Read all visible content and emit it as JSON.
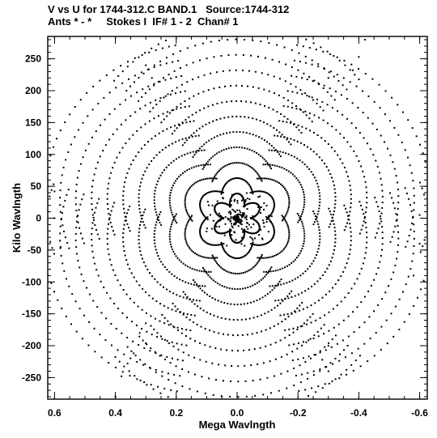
{
  "header": {
    "line1": "V vs U for 1744-312.C BAND.1   Source:1744-312",
    "line2": "Ants * - *     Stokes I  IF# 1 - 2  Chan# 1"
  },
  "chart_data": {
    "type": "scatter",
    "title": "V vs U for 1744-312.C BAND.1   Source:1744-312",
    "subtitle": "Ants * - *     Stokes I  IF# 1 - 2  Chan# 1",
    "xlabel": "Mega Wavlngth",
    "ylabel": "Kilo Wavlngth",
    "xlim": [
      0.62,
      -0.62
    ],
    "ylim": [
      -290,
      290
    ],
    "x_ticks": [
      0.6,
      0.4,
      0.2,
      0.0,
      -0.2,
      -0.4,
      -0.6
    ],
    "x_tick_labels": [
      "0.6",
      "0.4",
      "0.2",
      "0.0",
      "-0.2",
      "-0.4",
      "-0.6"
    ],
    "y_ticks": [
      250,
      200,
      150,
      100,
      50,
      0,
      -50,
      -100,
      -150,
      -200,
      -250
    ],
    "y_tick_labels": [
      "250",
      "200",
      "150",
      "100",
      "50",
      "0",
      "-50",
      "-100",
      "-150",
      "-200",
      "-250"
    ],
    "grid": false,
    "marker_color": "#000000",
    "tracks": [
      {
        "u": 0.6,
        "v": 90,
        "len": 0.1,
        "dir": -1
      },
      {
        "u": 0.56,
        "v": 75,
        "len": 0.12,
        "dir": -1
      },
      {
        "u": 0.52,
        "v": 90,
        "len": 0.16,
        "dir": -1
      },
      {
        "u": 0.46,
        "v": 105,
        "len": 0.18,
        "dir": -1
      },
      {
        "u": 0.4,
        "v": 115,
        "len": 0.2,
        "dir": -1
      },
      {
        "u": 0.35,
        "v": 125,
        "len": 0.24,
        "dir": -1
      },
      {
        "u": 0.29,
        "v": 140,
        "len": 0.25,
        "dir": -1
      },
      {
        "u": 0.22,
        "v": 150,
        "len": 0.2,
        "dir": -1
      },
      {
        "u": 0.15,
        "v": 155,
        "len": 0.14,
        "dir": -1
      },
      {
        "u": 0.08,
        "v": 150,
        "len": 0.08,
        "dir": -1
      },
      {
        "u": 0.54,
        "v": 50,
        "len": 0.1,
        "dir": -1
      },
      {
        "u": 0.48,
        "v": 45,
        "len": 0.14,
        "dir": -1
      },
      {
        "u": 0.42,
        "v": 40,
        "len": 0.16,
        "dir": -1
      },
      {
        "u": 0.36,
        "v": 35,
        "len": 0.18,
        "dir": -1
      },
      {
        "u": 0.3,
        "v": 30,
        "len": 0.2,
        "dir": -1
      },
      {
        "u": 0.24,
        "v": 25,
        "len": 0.18,
        "dir": -1
      },
      {
        "u": 0.18,
        "v": 20,
        "len": 0.16,
        "dir": -1
      },
      {
        "u": 0.12,
        "v": 12,
        "len": 0.1,
        "dir": -1
      }
    ]
  }
}
